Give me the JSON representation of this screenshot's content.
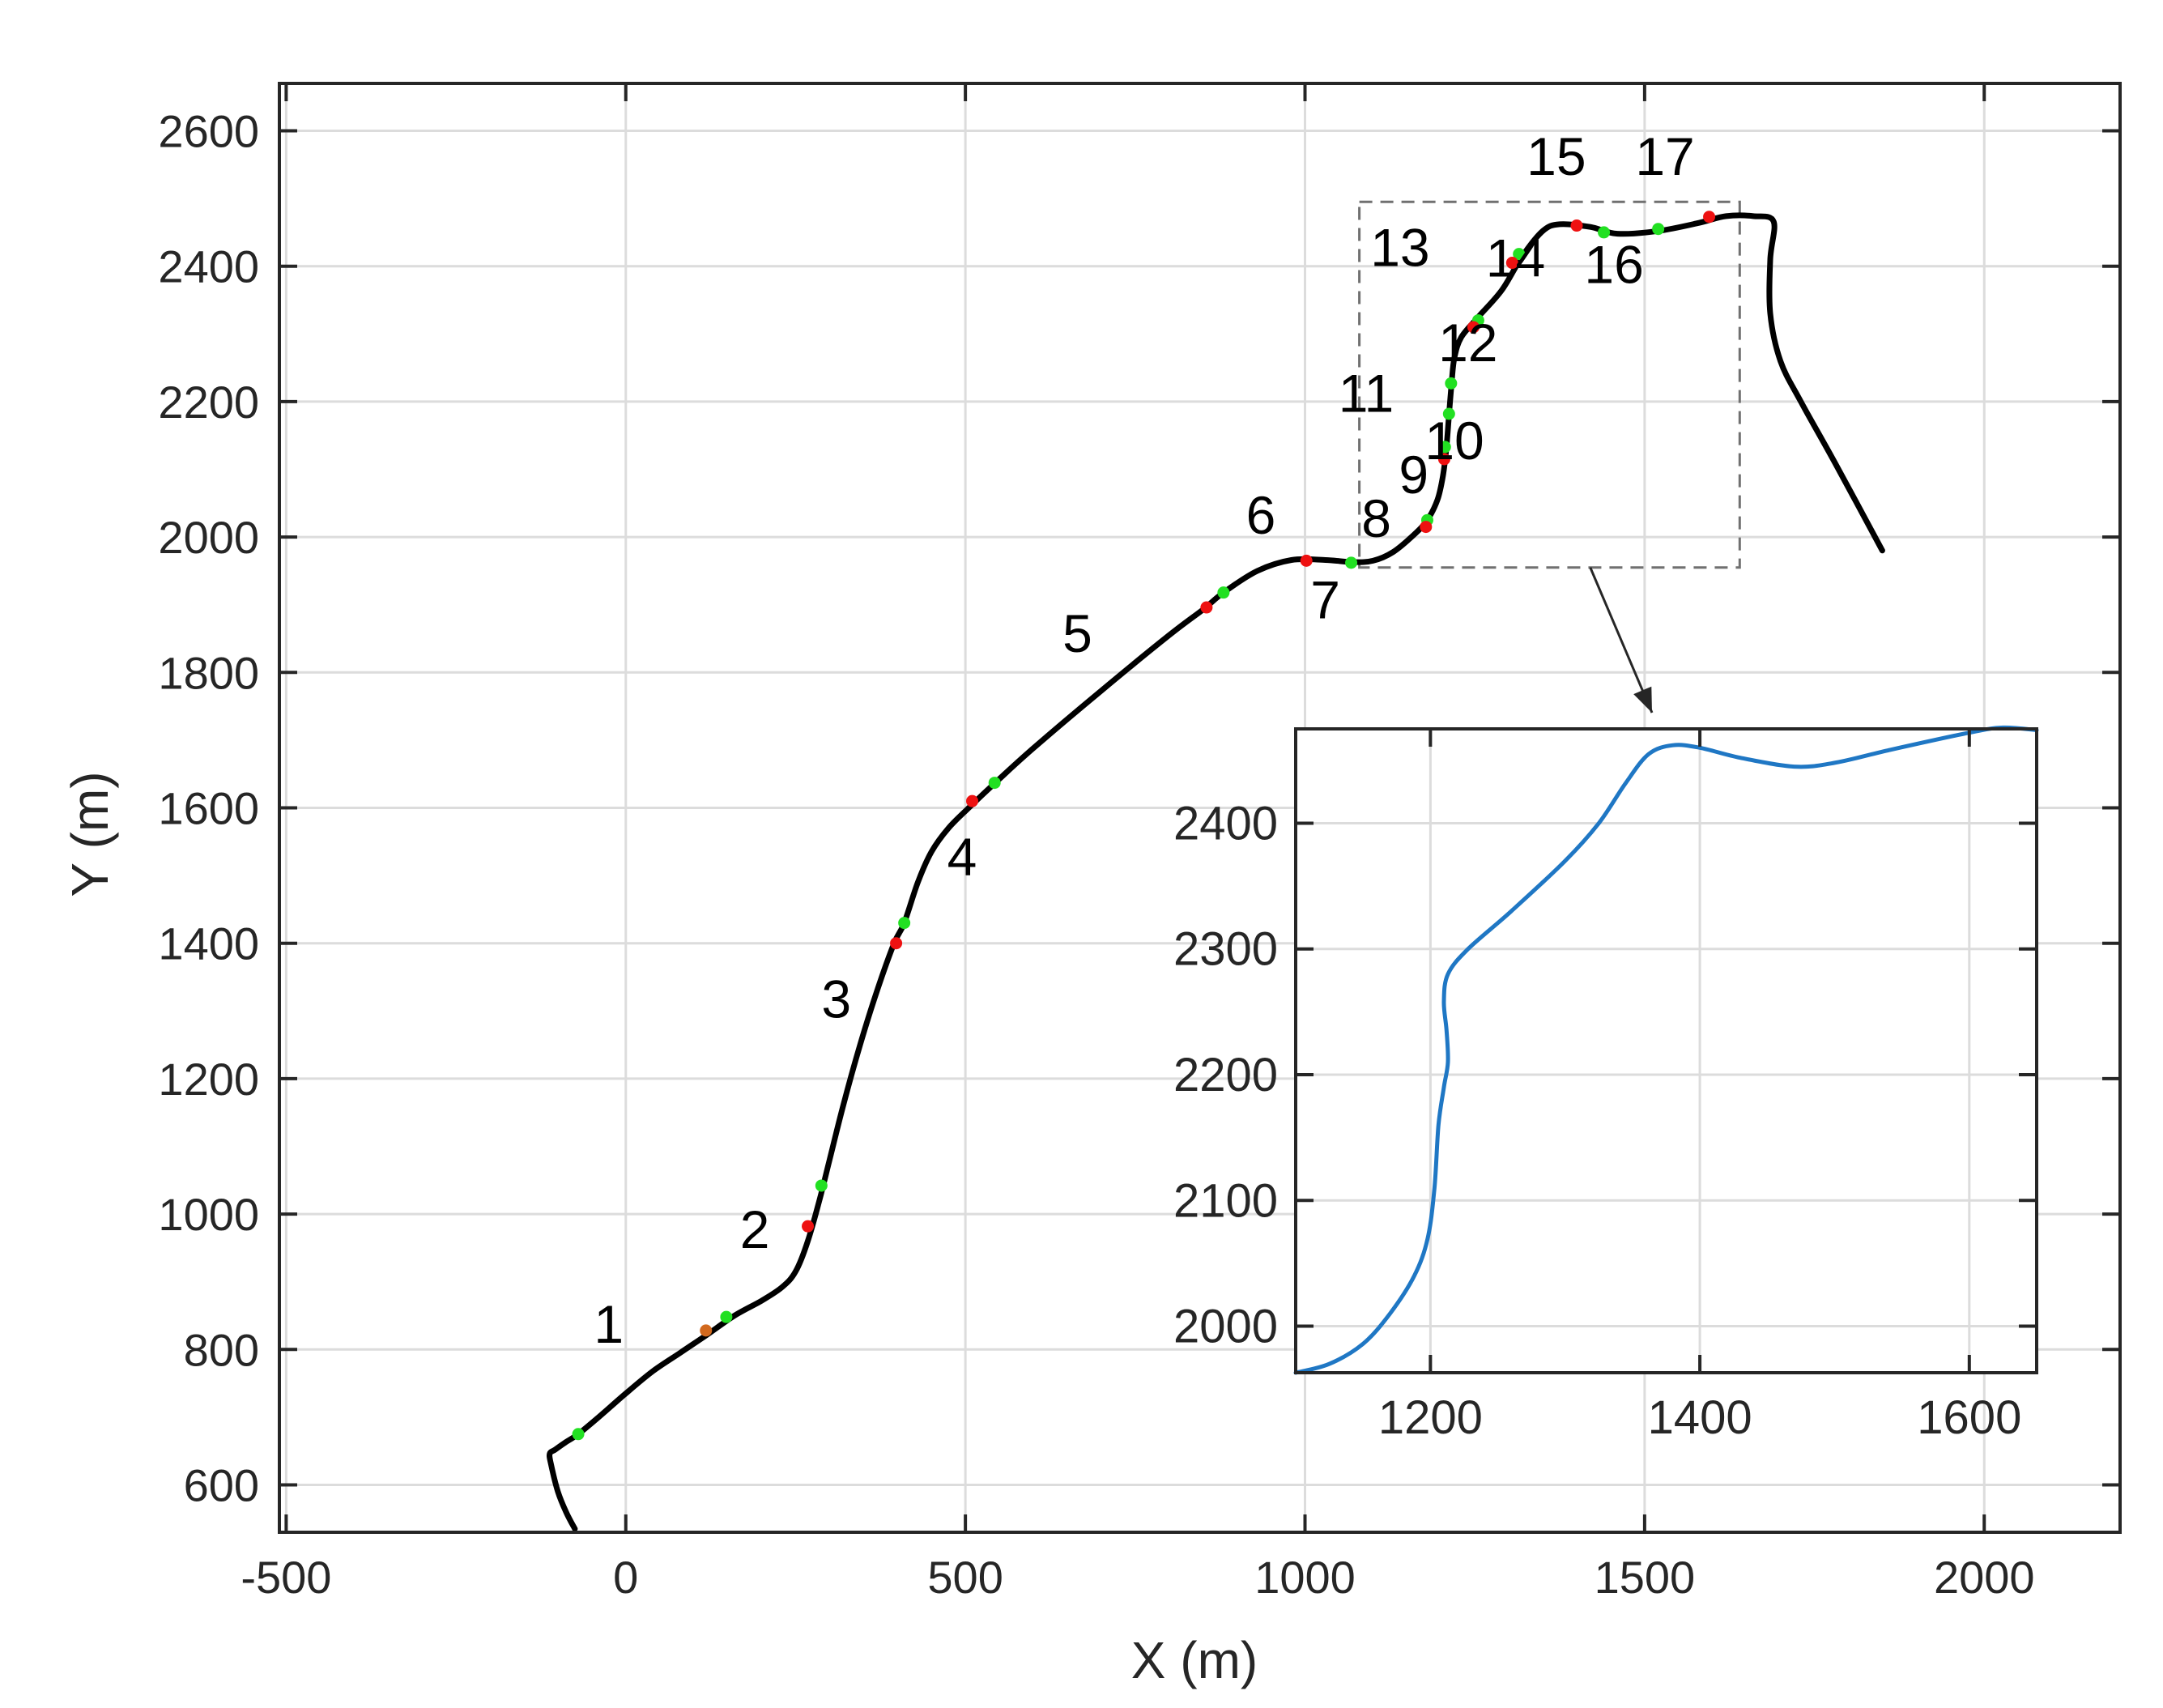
{
  "chart_data": [
    {
      "type": "line",
      "title": "",
      "xlabel": "X (m)",
      "ylabel": "Y (m)",
      "xlim": [
        -510,
        2200
      ],
      "ylim": [
        530,
        2670
      ],
      "xticks": [
        -500,
        0,
        500,
        1000,
        1500,
        2000
      ],
      "yticks": [
        600,
        800,
        1000,
        1200,
        1400,
        1600,
        1800,
        2000,
        2200,
        2400,
        2600
      ],
      "x_tick_labels": [
        "-500",
        "0",
        "500",
        "1000",
        "1500",
        "2000"
      ],
      "y_tick_labels": [
        "600",
        "800",
        "1000",
        "1200",
        "1400",
        "1600",
        "1800",
        "2000",
        "2200",
        "2400",
        "2600"
      ],
      "grid": true,
      "line_color": "#000000",
      "path": [
        [
          -75,
          535
        ],
        [
          -88,
          560
        ],
        [
          -100,
          590
        ],
        [
          -110,
          630
        ],
        [
          -112,
          646
        ],
        [
          -104,
          652
        ],
        [
          -90,
          662
        ],
        [
          -70,
          675
        ],
        [
          -40,
          700
        ],
        [
          0,
          735
        ],
        [
          40,
          768
        ],
        [
          80,
          795
        ],
        [
          120,
          822
        ],
        [
          160,
          850
        ],
        [
          200,
          872
        ],
        [
          230,
          892
        ],
        [
          250,
          915
        ],
        [
          268,
          960
        ],
        [
          285,
          1020
        ],
        [
          300,
          1080
        ],
        [
          320,
          1160
        ],
        [
          345,
          1250
        ],
        [
          370,
          1330
        ],
        [
          395,
          1400
        ],
        [
          410,
          1430
        ],
        [
          430,
          1490
        ],
        [
          450,
          1535
        ],
        [
          475,
          1570
        ],
        [
          505,
          1600
        ],
        [
          545,
          1638
        ],
        [
          600,
          1688
        ],
        [
          700,
          1773
        ],
        [
          800,
          1855
        ],
        [
          850,
          1893
        ],
        [
          880,
          1918
        ],
        [
          930,
          1950
        ],
        [
          980,
          1966
        ],
        [
          1030,
          1966
        ],
        [
          1070,
          1963
        ],
        [
          1100,
          1965
        ],
        [
          1130,
          1978
        ],
        [
          1160,
          2003
        ],
        [
          1180,
          2025
        ],
        [
          1195,
          2055
        ],
        [
          1203,
          2090
        ],
        [
          1208,
          2130
        ],
        [
          1212,
          2180
        ],
        [
          1216,
          2230
        ],
        [
          1220,
          2265
        ],
        [
          1230,
          2295
        ],
        [
          1255,
          2325
        ],
        [
          1290,
          2365
        ],
        [
          1320,
          2415
        ],
        [
          1350,
          2452
        ],
        [
          1375,
          2462
        ],
        [
          1420,
          2458
        ],
        [
          1460,
          2448
        ],
        [
          1520,
          2452
        ],
        [
          1580,
          2464
        ],
        [
          1620,
          2474
        ],
        [
          1660,
          2474
        ],
        [
          1690,
          2466
        ],
        [
          1685,
          2410
        ],
        [
          1685,
          2330
        ],
        [
          1700,
          2260
        ],
        [
          1730,
          2200
        ],
        [
          1780,
          2110
        ],
        [
          1850,
          1980
        ]
      ],
      "green_markers": [
        [
          -70,
          675
        ],
        [
          148,
          848
        ],
        [
          288,
          1042
        ],
        [
          410,
          1430
        ],
        [
          543,
          1637
        ],
        [
          880,
          1918
        ],
        [
          1068,
          1962
        ],
        [
          1180,
          2025
        ],
        [
          1206,
          2133
        ],
        [
          1212,
          2182
        ],
        [
          1215,
          2227
        ],
        [
          1255,
          2320
        ],
        [
          1315,
          2418
        ],
        [
          1440,
          2450
        ],
        [
          1520,
          2455
        ]
      ],
      "red_markers": [
        [
          268,
          982
        ],
        [
          398,
          1400
        ],
        [
          510,
          1610
        ],
        [
          855,
          1896
        ],
        [
          1002,
          1965
        ],
        [
          1178,
          2015
        ],
        [
          1205,
          2115
        ],
        [
          1248,
          2310
        ],
        [
          1305,
          2405
        ],
        [
          1400,
          2460
        ],
        [
          1595,
          2473
        ]
      ],
      "orange_markers": [
        [
          118,
          828
        ]
      ],
      "segment_labels": [
        {
          "text": "1",
          "x": -25,
          "y": 810
        },
        {
          "text": "2",
          "x": 190,
          "y": 950
        },
        {
          "text": "3",
          "x": 310,
          "y": 1290
        },
        {
          "text": "4",
          "x": 495,
          "y": 1500
        },
        {
          "text": "5",
          "x": 665,
          "y": 1830
        },
        {
          "text": "6",
          "x": 935,
          "y": 2005
        },
        {
          "text": "7",
          "x": 1030,
          "y": 1880
        },
        {
          "text": "8",
          "x": 1105,
          "y": 2000
        },
        {
          "text": "9",
          "x": 1160,
          "y": 2065
        },
        {
          "text": "10",
          "x": 1220,
          "y": 2115
        },
        {
          "text": "11",
          "x": 1090,
          "y": 2185
        },
        {
          "text": "12",
          "x": 1240,
          "y": 2260
        },
        {
          "text": "13",
          "x": 1140,
          "y": 2400
        },
        {
          "text": "14",
          "x": 1310,
          "y": 2385
        },
        {
          "text": "15",
          "x": 1370,
          "y": 2535
        },
        {
          "text": "16",
          "x": 1455,
          "y": 2375
        },
        {
          "text": "17",
          "x": 1530,
          "y": 2535
        }
      ],
      "zoom_box": {
        "x": [
          1080,
          1640
        ],
        "y": [
          1955,
          2495
        ]
      }
    },
    {
      "type": "line",
      "title": "",
      "xlabel": "",
      "ylabel": "",
      "xlim": [
        1100,
        1650
      ],
      "ylim": [
        1963,
        2475
      ],
      "xticks": [
        1200,
        1400,
        1600
      ],
      "yticks": [
        2000,
        2100,
        2200,
        2300,
        2400
      ],
      "x_tick_labels": [
        "1200",
        "1400",
        "1600"
      ],
      "y_tick_labels": [
        "2000",
        "2100",
        "2200",
        "2300",
        "2400"
      ],
      "grid": true,
      "line_color": "#1f77c4",
      "path": [
        [
          1100,
          1963
        ],
        [
          1125,
          1970
        ],
        [
          1150,
          1986
        ],
        [
          1170,
          2010
        ],
        [
          1188,
          2040
        ],
        [
          1198,
          2070
        ],
        [
          1203,
          2110
        ],
        [
          1206,
          2160
        ],
        [
          1210,
          2190
        ],
        [
          1213,
          2210
        ],
        [
          1212,
          2235
        ],
        [
          1210,
          2258
        ],
        [
          1213,
          2280
        ],
        [
          1228,
          2300
        ],
        [
          1260,
          2330
        ],
        [
          1300,
          2370
        ],
        [
          1325,
          2400
        ],
        [
          1345,
          2432
        ],
        [
          1362,
          2455
        ],
        [
          1380,
          2462
        ],
        [
          1400,
          2460
        ],
        [
          1430,
          2452
        ],
        [
          1470,
          2445
        ],
        [
          1500,
          2448
        ],
        [
          1540,
          2458
        ],
        [
          1600,
          2472
        ],
        [
          1625,
          2476
        ],
        [
          1650,
          2474
        ]
      ]
    }
  ]
}
